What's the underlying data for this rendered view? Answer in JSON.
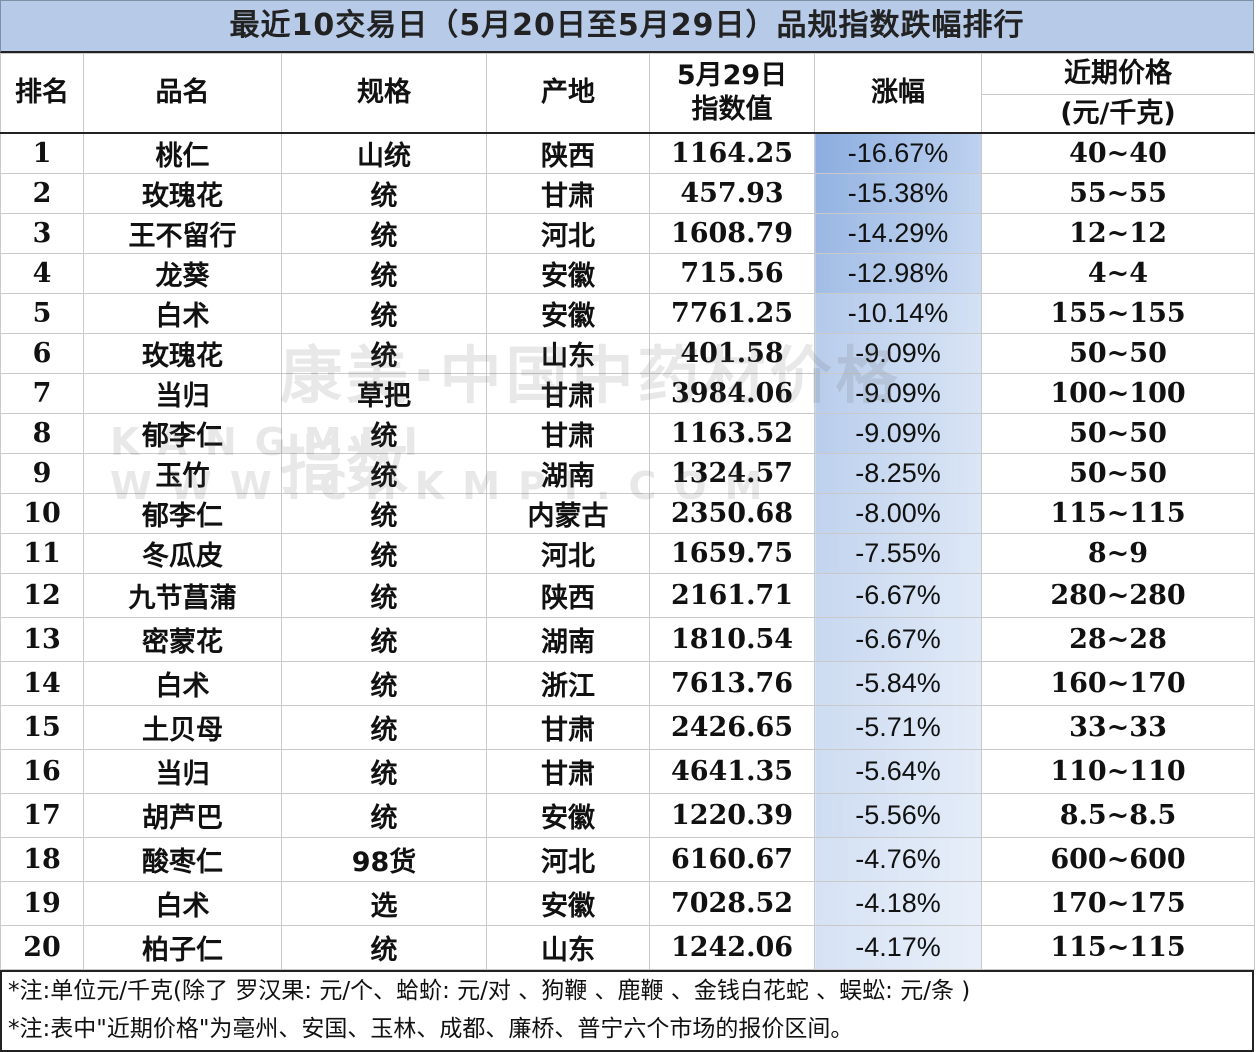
{
  "title": "最近10交易日（5月20日至5月29日）品规指数跌幅排行",
  "headers": {
    "rank": "排名",
    "name": "品名",
    "spec": "规格",
    "origin": "产地",
    "index_line1": "5月29日",
    "index_line2": "指数值",
    "change": "涨幅",
    "price_line1": "近期价格",
    "price_line2": "(元/千克)"
  },
  "rows": [
    {
      "rank": "1",
      "name": "桃仁",
      "spec": "山统",
      "origin": "陕西",
      "index": "1164.25",
      "change": "-16.67%",
      "change_pct": -16.67,
      "price": "40~40"
    },
    {
      "rank": "2",
      "name": "玫瑰花",
      "spec": "统",
      "origin": "甘肃",
      "index": "457.93",
      "change": "-15.38%",
      "change_pct": -15.38,
      "price": "55~55"
    },
    {
      "rank": "3",
      "name": "王不留行",
      "spec": "统",
      "origin": "河北",
      "index": "1608.79",
      "change": "-14.29%",
      "change_pct": -14.29,
      "price": "12~12"
    },
    {
      "rank": "4",
      "name": "龙葵",
      "spec": "统",
      "origin": "安徽",
      "index": "715.56",
      "change": "-12.98%",
      "change_pct": -12.98,
      "price": "4~4"
    },
    {
      "rank": "5",
      "name": "白术",
      "spec": "统",
      "origin": "安徽",
      "index": "7761.25",
      "change": "-10.14%",
      "change_pct": -10.14,
      "price": "155~155"
    },
    {
      "rank": "6",
      "name": "玫瑰花",
      "spec": "统",
      "origin": "山东",
      "index": "401.58",
      "change": "-9.09%",
      "change_pct": -9.09,
      "price": "50~50"
    },
    {
      "rank": "7",
      "name": "当归",
      "spec": "草把",
      "origin": "甘肃",
      "index": "3984.06",
      "change": "-9.09%",
      "change_pct": -9.09,
      "price": "100~100"
    },
    {
      "rank": "8",
      "name": "郁李仁",
      "spec": "统",
      "origin": "甘肃",
      "index": "1163.52",
      "change": "-9.09%",
      "change_pct": -9.09,
      "price": "50~50"
    },
    {
      "rank": "9",
      "name": "玉竹",
      "spec": "统",
      "origin": "湖南",
      "index": "1324.57",
      "change": "-8.25%",
      "change_pct": -8.25,
      "price": "50~50"
    },
    {
      "rank": "10",
      "name": "郁李仁",
      "spec": "统",
      "origin": "内蒙古",
      "index": "2350.68",
      "change": "-8.00%",
      "change_pct": -8.0,
      "price": "115~115"
    },
    {
      "rank": "11",
      "name": "冬瓜皮",
      "spec": "统",
      "origin": "河北",
      "index": "1659.75",
      "change": "-7.55%",
      "change_pct": -7.55,
      "price": "8~9"
    },
    {
      "rank": "12",
      "name": "九节菖蒲",
      "spec": "统",
      "origin": "陕西",
      "index": "2161.71",
      "change": "-6.67%",
      "change_pct": -6.67,
      "price": "280~280"
    },
    {
      "rank": "13",
      "name": "密蒙花",
      "spec": "统",
      "origin": "湖南",
      "index": "1810.54",
      "change": "-6.67%",
      "change_pct": -6.67,
      "price": "28~28"
    },
    {
      "rank": "14",
      "name": "白术",
      "spec": "统",
      "origin": "浙江",
      "index": "7613.76",
      "change": "-5.84%",
      "change_pct": -5.84,
      "price": "160~170"
    },
    {
      "rank": "15",
      "name": "土贝母",
      "spec": "统",
      "origin": "甘肃",
      "index": "2426.65",
      "change": "-5.71%",
      "change_pct": -5.71,
      "price": "33~33"
    },
    {
      "rank": "16",
      "name": "当归",
      "spec": "统",
      "origin": "甘肃",
      "index": "4641.35",
      "change": "-5.64%",
      "change_pct": -5.64,
      "price": "110~110"
    },
    {
      "rank": "17",
      "name": "胡芦巴",
      "spec": "统",
      "origin": "安徽",
      "index": "1220.39",
      "change": "-5.56%",
      "change_pct": -5.56,
      "price": "8.5~8.5"
    },
    {
      "rank": "18",
      "name": "酸枣仁",
      "spec": "98货",
      "origin": "河北",
      "index": "6160.67",
      "change": "-4.76%",
      "change_pct": -4.76,
      "price": "600~600"
    },
    {
      "rank": "19",
      "name": "白术",
      "spec": "选",
      "origin": "安徽",
      "index": "7028.52",
      "change": "-4.18%",
      "change_pct": -4.18,
      "price": "170~175"
    },
    {
      "rank": "20",
      "name": "柏子仁",
      "spec": "统",
      "origin": "山东",
      "index": "1242.06",
      "change": "-4.17%",
      "change_pct": -4.17,
      "price": "115~115"
    }
  ],
  "notes": [
    "*注:单位元/千克(除了 罗汉果: 元/个、蛤蚧: 元/对 、狗鞭 、鹿鞭 、金钱白花蛇 、蜈蚣: 元/条 )",
    "*注:表中\"近期价格\"为亳州、安国、玉林、成都、廉桥、普宁六个市场的报价区间。"
  ],
  "watermark": {
    "text": "康美·中国中药材价格指数",
    "sub": "KANGMEI WWW.CHKMPI.COM"
  },
  "colors": {
    "title_bg": "#b7cbe9",
    "gradient_top": "#7fa4dc",
    "gradient_bottom": "#ffffff"
  }
}
